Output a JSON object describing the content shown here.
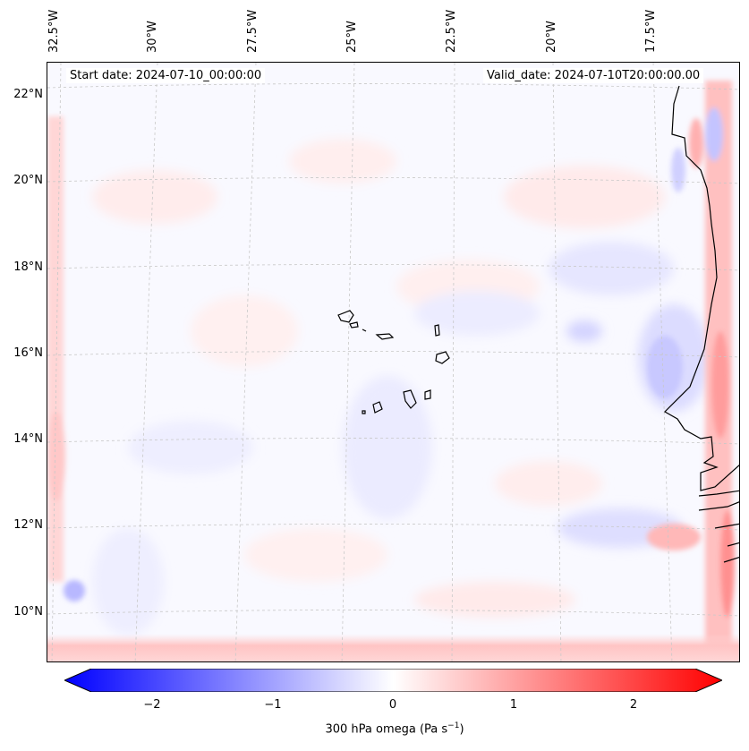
{
  "map": {
    "start_date": "Start date: 2024-07-10_00:00:00",
    "valid_date": "Valid_date: 2024-07-10T20:00:00.00",
    "lon_labels": [
      "32.5°W",
      "30°W",
      "27.5°W",
      "25°W",
      "22.5°W",
      "20°W",
      "17.5°W"
    ],
    "lat_labels": [
      "22°N",
      "20°N",
      "18°N",
      "16°N",
      "14°N",
      "12°N",
      "10°N"
    ],
    "gridlines": true,
    "field": "300 hPa omega",
    "colors": {
      "negative": "#0000ff",
      "zero": "#ffffff",
      "positive": "#ff0000",
      "coast": "#000000"
    }
  },
  "colorbar": {
    "ticks": [
      "−2",
      "−1",
      "0",
      "1",
      "2"
    ],
    "range": [
      -2.75,
      2.75
    ],
    "extend": "both",
    "label_main": "300 hPa omega (Pa s",
    "label_sup": "−1",
    "label_end": ")"
  }
}
